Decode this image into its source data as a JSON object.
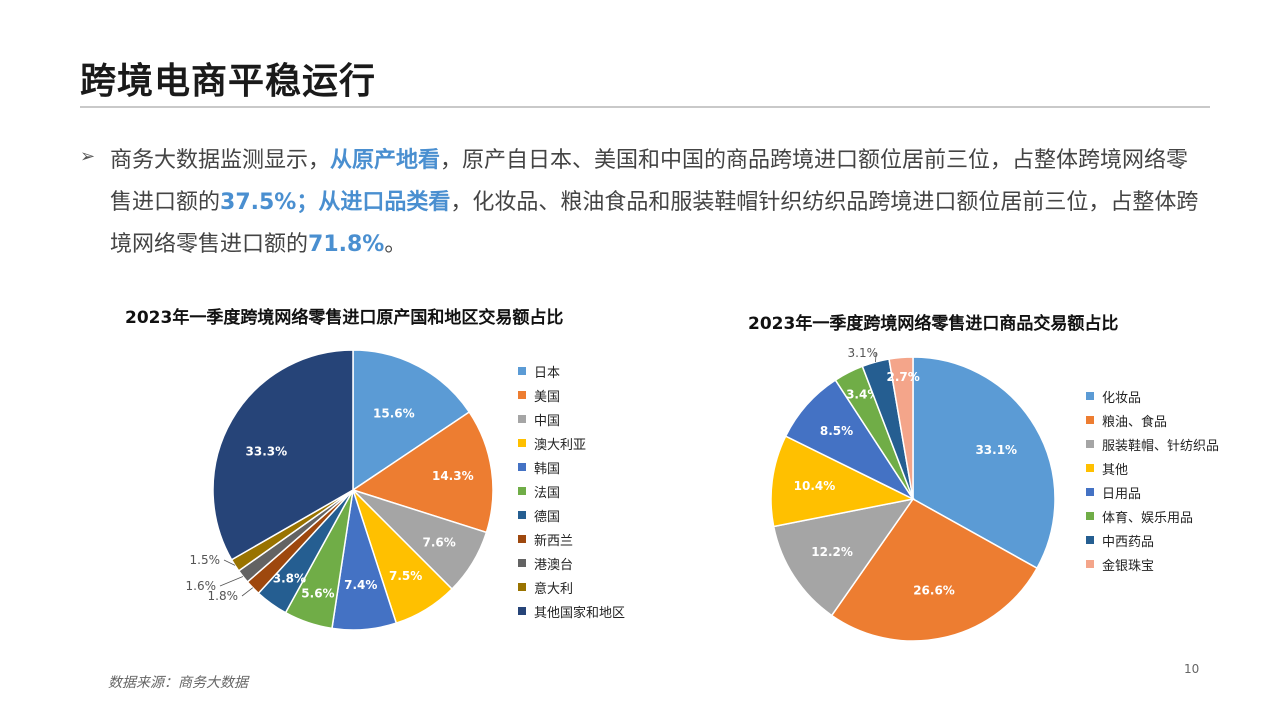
{
  "page": {
    "title": "跨境电商平稳运行",
    "bullet": {
      "p1": "商务大数据监测显示，",
      "h1": "从原产地看",
      "p2": "，原产自日本、美国和中国的商品跨境进口额位居前三位，占整体跨境网络零售进口额的",
      "h2": "37.5%；从进口品类看",
      "p3": "，化妆品、粮油食品和服装鞋帽针织纺织品跨境进口额位居前三位，占整体跨境网络零售进口额的",
      "h3": "71.8%",
      "p4": "。"
    },
    "source": "数据来源：商务大数据",
    "page_number": "10"
  },
  "chart_data": [
    {
      "type": "pie",
      "title": "2023年一季度跨境网络零售进口原产国和地区交易额占比",
      "legend_position": "right",
      "categories": [
        "日本",
        "美国",
        "中国",
        "澳大利亚",
        "韩国",
        "法国",
        "德国",
        "新西兰",
        "港澳台",
        "意大利",
        "其他国家和地区"
      ],
      "values": [
        15.6,
        14.3,
        7.6,
        7.5,
        7.4,
        5.6,
        3.8,
        1.8,
        1.6,
        1.5,
        33.3
      ],
      "labels": [
        "15.6%",
        "14.3%",
        "7.6%",
        "7.5%",
        "7.4%",
        "5.6%",
        "3.8%",
        "1.8%",
        "1.6%",
        "1.5%",
        "33.3%"
      ],
      "colors": [
        "#5b9bd5",
        "#ed7d31",
        "#a5a5a5",
        "#ffc000",
        "#4472c4",
        "#70ad47",
        "#255e91",
        "#9e480e",
        "#636363",
        "#997300",
        "#264478"
      ]
    },
    {
      "type": "pie",
      "title": "2023年一季度跨境网络零售进口商品交易额占比",
      "legend_position": "right",
      "categories": [
        "化妆品",
        "粮油、食品",
        "服装鞋帽、针纺织品",
        "其他",
        "日用品",
        "体育、娱乐用品",
        "中西药品",
        "金银珠宝"
      ],
      "values": [
        33.1,
        26.6,
        12.2,
        10.4,
        8.5,
        3.4,
        3.1,
        2.7
      ],
      "labels": [
        "33.1%",
        "26.6%",
        "12.2%",
        "10.4%",
        "8.5%",
        "3.4%",
        "3.1%",
        "2.7%"
      ],
      "colors": [
        "#5b9bd5",
        "#ed7d31",
        "#a5a5a5",
        "#ffc000",
        "#4472c4",
        "#70ad47",
        "#255e91",
        "#f4a58a"
      ]
    }
  ]
}
